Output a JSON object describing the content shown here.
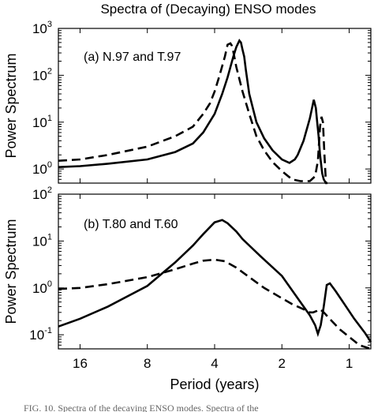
{
  "figure": {
    "title": "Spectra of (Decaying) ENSO modes",
    "caption_fragment": "FIG. 10. Spectra of the decaying ENSO modes. Spectra of the"
  },
  "chart_data": [
    {
      "type": "line",
      "panel_label": "(a) N.97 and T.97",
      "ylabel": "Power Spectrum",
      "xlabel": "",
      "x_scale": "log-period-reversed",
      "y_scale": "log",
      "xlim": [
        20,
        0.8
      ],
      "ylim": [
        0.5,
        1000
      ],
      "xticks": [
        16,
        8,
        4,
        2,
        1
      ],
      "yticks": [
        {
          "value": 1,
          "base": "10",
          "exp": "0"
        },
        {
          "value": 10,
          "base": "10",
          "exp": "1"
        },
        {
          "value": 100,
          "base": "10",
          "exp": "2"
        },
        {
          "value": 1000,
          "base": "10",
          "exp": "3"
        }
      ],
      "series": [
        {
          "line_style": "solid",
          "x": [
            20,
            16,
            12,
            8,
            6,
            5,
            4.5,
            4,
            3.7,
            3.5,
            3.3,
            3.2,
            3.1,
            3.05,
            3.0,
            2.95,
            2.9,
            2.8,
            2.6,
            2.4,
            2.2,
            2.0,
            1.85,
            1.75,
            1.7,
            1.6,
            1.5,
            1.44,
            1.41,
            1.39,
            1.37,
            1.35,
            1.32,
            1.3,
            1.27
          ],
          "y": [
            1.1,
            1.15,
            1.3,
            1.6,
            2.3,
            3.5,
            6,
            15,
            40,
            90,
            250,
            400,
            550,
            500,
            350,
            250,
            130,
            40,
            10,
            4.5,
            2.5,
            1.6,
            1.35,
            1.6,
            2.0,
            4,
            12,
            30,
            20,
            10,
            5,
            2,
            0.8,
            0.6,
            0.3
          ]
        },
        {
          "line_style": "dashed",
          "x": [
            20,
            16,
            12,
            8,
            6,
            5,
            4.5,
            4.2,
            4.0,
            3.8,
            3.6,
            3.5,
            3.4,
            3.35,
            3.3,
            3.2,
            3.0,
            2.8,
            2.6,
            2.4,
            2.2,
            2.0,
            1.8,
            1.65,
            1.5,
            1.42,
            1.38,
            1.35,
            1.33,
            1.31,
            1.29,
            1.27,
            1.25
          ],
          "y": [
            1.5,
            1.6,
            2.0,
            3.0,
            5.0,
            8.0,
            15,
            25,
            45,
            100,
            250,
            450,
            480,
            430,
            320,
            150,
            45,
            15,
            5,
            2.5,
            1.4,
            0.9,
            0.6,
            0.55,
            0.55,
            0.7,
            1.5,
            8,
            13,
            10,
            2,
            0.5,
            0.3
          ]
        }
      ]
    },
    {
      "type": "line",
      "panel_label": "(b) T.80 and T.60",
      "ylabel": "Power Spectrum",
      "xlabel": "Period (years)",
      "x_scale": "log-period-reversed",
      "y_scale": "log",
      "xlim": [
        20,
        0.8
      ],
      "ylim": [
        0.05,
        100
      ],
      "xticks": [
        16,
        8,
        4,
        2,
        1
      ],
      "yticks": [
        {
          "value": 0.1,
          "base": "10",
          "exp": "-1"
        },
        {
          "value": 1,
          "base": "10",
          "exp": "0"
        },
        {
          "value": 10,
          "base": "10",
          "exp": "1"
        },
        {
          "value": 100,
          "base": "10",
          "exp": "2"
        }
      ],
      "series": [
        {
          "line_style": "solid",
          "x": [
            20,
            16,
            12,
            8,
            6,
            5,
            4.5,
            4.0,
            3.7,
            3.5,
            3.2,
            3.0,
            2.5,
            2.0,
            1.7,
            1.5,
            1.42,
            1.38,
            1.34,
            1.3,
            1.26,
            1.22,
            1.15,
            1.05,
            0.95,
            0.85,
            0.8
          ],
          "y": [
            0.15,
            0.22,
            0.4,
            1.1,
            3.5,
            8,
            14,
            25,
            28,
            24,
            16,
            11,
            4.8,
            1.8,
            0.6,
            0.26,
            0.16,
            0.105,
            0.16,
            0.4,
            1.15,
            1.25,
            0.85,
            0.45,
            0.22,
            0.11,
            0.07
          ]
        },
        {
          "line_style": "dashed",
          "x": [
            20,
            16,
            12,
            8,
            6,
            5,
            4.5,
            4.0,
            3.6,
            3.2,
            2.8,
            2.4,
            2.0,
            1.8,
            1.6,
            1.5,
            1.45,
            1.4,
            1.35,
            1.3,
            1.2,
            1.1,
            1.0,
            0.9,
            0.8
          ],
          "y": [
            0.95,
            1.0,
            1.2,
            1.7,
            2.5,
            3.3,
            3.8,
            4.0,
            3.7,
            2.7,
            1.7,
            1.0,
            0.6,
            0.45,
            0.35,
            0.3,
            0.3,
            0.32,
            0.35,
            0.3,
            0.2,
            0.13,
            0.09,
            0.06,
            0.045
          ]
        }
      ]
    }
  ]
}
